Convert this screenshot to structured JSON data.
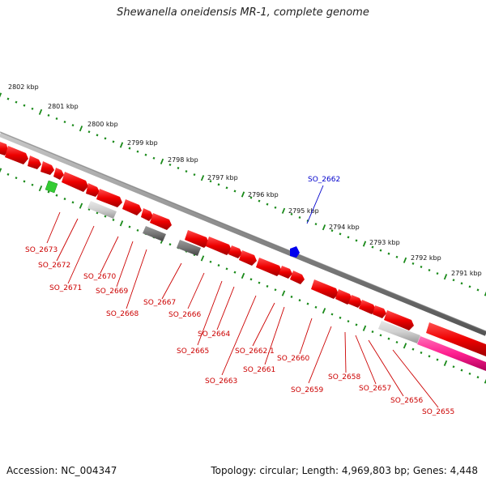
{
  "title": "Shewanella oneidensis MR-1, complete genome",
  "footer": {
    "accession": "Accession: NC_004347",
    "topology": "Topology: circular; Length: 4,969,803 bp; Genes: 4,448"
  },
  "ticks": [
    "2802 kbp",
    "2801 kbp",
    "2800 kbp",
    "2799 kbp",
    "2798 kbp",
    "2797 kbp",
    "2796 kbp",
    "2795 kbp",
    "2794 kbp",
    "2793 kbp",
    "2792 kbp",
    "2791 kbp"
  ],
  "genes": [
    {
      "name": "SO_2673",
      "strand": "minus",
      "color": "#dd0000"
    },
    {
      "name": "SO_2672",
      "strand": "minus",
      "color": "#dd0000"
    },
    {
      "name": "SO_2671",
      "strand": "minus",
      "color": "#dd0000"
    },
    {
      "name": "SO_2670",
      "strand": "minus",
      "color": "#dd0000"
    },
    {
      "name": "SO_2669",
      "strand": "minus",
      "color": "#dd0000"
    },
    {
      "name": "SO_2668",
      "strand": "minus",
      "color": "#dd0000"
    },
    {
      "name": "SO_2667",
      "strand": "minus",
      "color": "#dd0000"
    },
    {
      "name": "SO_2666",
      "strand": "minus",
      "color": "#dd0000"
    },
    {
      "name": "SO_2665",
      "strand": "minus",
      "color": "#dd0000"
    },
    {
      "name": "SO_2664",
      "strand": "minus",
      "color": "#dd0000"
    },
    {
      "name": "SO_2663",
      "strand": "minus",
      "color": "#dd0000"
    },
    {
      "name": "SO_2662.1",
      "strand": "minus",
      "color": "#dd0000"
    },
    {
      "name": "SO_2662",
      "strand": "plus",
      "color": "#0000cc"
    },
    {
      "name": "SO_2661",
      "strand": "minus",
      "color": "#dd0000"
    },
    {
      "name": "SO_2660",
      "strand": "minus",
      "color": "#dd0000"
    },
    {
      "name": "SO_2659",
      "strand": "minus",
      "color": "#dd0000"
    },
    {
      "name": "SO_2658",
      "strand": "minus",
      "color": "#dd0000"
    },
    {
      "name": "SO_2657",
      "strand": "minus",
      "color": "#dd0000"
    },
    {
      "name": "SO_2656",
      "strand": "minus",
      "color": "#dd0000"
    },
    {
      "name": "SO_2655",
      "strand": "minus",
      "color": "#dd0000"
    }
  ],
  "colors": {
    "cds": "#ee0000",
    "backbone": "#888888",
    "tick": "#1a8a1a",
    "rna_green": "#33cc33",
    "plus_label": "#0000cc",
    "minus_label": "#dd0000",
    "magenta_feature": "#ff2090"
  }
}
